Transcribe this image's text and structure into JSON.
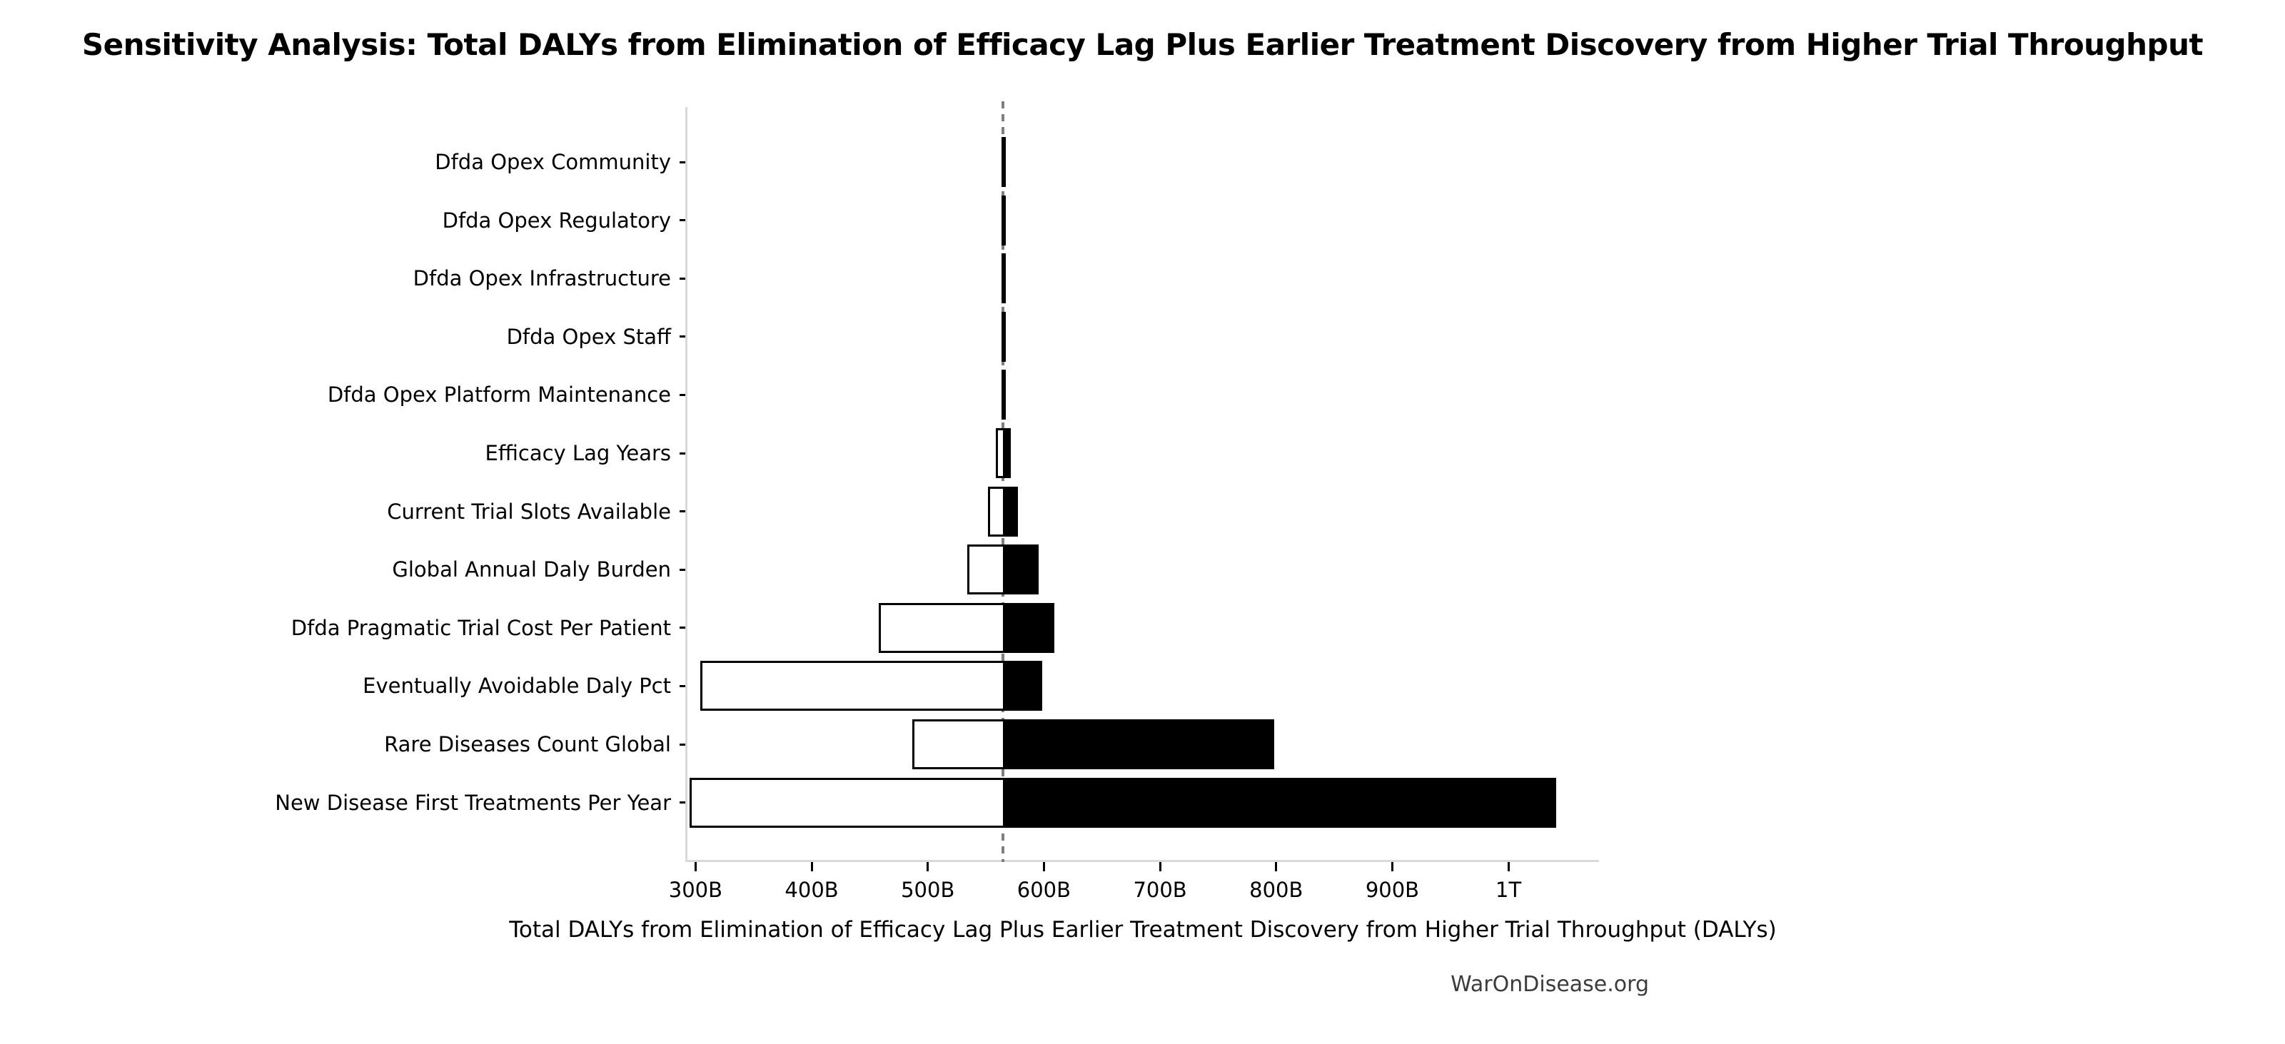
{
  "title": "Sensitivity Analysis: Total DALYs from Elimination of Efficacy Lag Plus Earlier Treatment Discovery from Higher Trial Throughput",
  "watermark": "WarOnDisease.org",
  "chart_data": {
    "type": "bar",
    "subtype": "tornado-sensitivity",
    "orientation": "horizontal",
    "unit": "DALYs",
    "xlabel": "Total DALYs from Elimination of Efficacy Lag Plus Earlier Treatment Discovery from Higher Trial Throughput (DALYs)",
    "base_value_billions": 565,
    "x_axis": {
      "range_billions": [
        293,
        1078
      ],
      "tick_values_billions": [
        300,
        400,
        500,
        600,
        700,
        800,
        900,
        1000
      ],
      "tick_labels": [
        "300B",
        "400B",
        "500B",
        "600B",
        "700B",
        "800B",
        "900B",
        "1T"
      ],
      "grid": false
    },
    "legend": "none",
    "rows": [
      {
        "label": "Dfda Opex Community",
        "low_billions": 564.8,
        "high_billions": 565.4
      },
      {
        "label": "Dfda Opex Regulatory",
        "low_billions": 564.8,
        "high_billions": 565.4
      },
      {
        "label": "Dfda Opex Infrastructure",
        "low_billions": 564.8,
        "high_billions": 565.3
      },
      {
        "label": "Dfda Opex Staff",
        "low_billions": 564.9,
        "high_billions": 565.3
      },
      {
        "label": "Dfda Opex Platform Maintenance",
        "low_billions": 564.9,
        "high_billions": 565.3
      },
      {
        "label": "Efficacy Lag Years",
        "low_billions": 560,
        "high_billions": 570.5
      },
      {
        "label": "Current Trial Slots Available",
        "low_billions": 553,
        "high_billions": 576.5
      },
      {
        "label": "Global Annual Daly Burden",
        "low_billions": 535,
        "high_billions": 594
      },
      {
        "label": "Dfda Pragmatic Trial Cost Per Patient",
        "low_billions": 459,
        "high_billions": 608
      },
      {
        "label": "Eventually Avoidable Daly Pct",
        "low_billions": 305,
        "high_billions": 597
      },
      {
        "label": "Rare Diseases Count Global",
        "low_billions": 488,
        "high_billions": 797
      },
      {
        "label": "New Disease First Treatments Per Year",
        "low_billions": 296,
        "high_billions": 1040
      }
    ],
    "colors": {
      "low_side_fill": "#ffffff",
      "high_side_fill": "#000000",
      "bar_edge": "#000000",
      "baseline_dashed": "#7f7f7f",
      "axis_spine": "#d9d9d9",
      "watermark_text": "#3c3c3c"
    }
  }
}
